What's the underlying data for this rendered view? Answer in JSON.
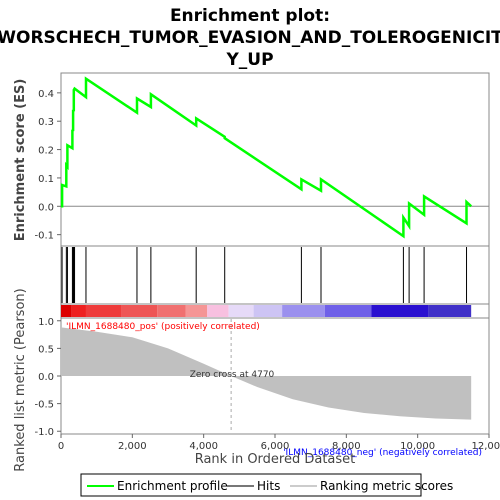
{
  "chart_data": {
    "type": "line",
    "title_lines": [
      "Enrichment plot:",
      "WORSCHECH_TUMOR_EVASION_AND_TOLEROGENICIT",
      "Y_UP"
    ],
    "ylabel_top": "Enrichment score (ES)",
    "ylabel_bottom": "Ranked list metric (Pearson)",
    "xlabel": "Rank in Ordered Dataset",
    "xlim": [
      0,
      12000
    ],
    "x_ticks": [
      0,
      2000,
      4000,
      6000,
      8000,
      10000,
      12000
    ],
    "x_tick_labels": [
      "0",
      "2,000",
      "4,000",
      "6,000",
      "8,000",
      "10,000",
      "12,000"
    ],
    "es_ylim": [
      -0.14,
      0.47
    ],
    "es_ticks": [
      -0.1,
      0.0,
      0.1,
      0.2,
      0.3,
      0.4
    ],
    "es_tick_labels": [
      "-0.1",
      "0.0",
      "0.1",
      "0.2",
      "0.3",
      "0.4"
    ],
    "metric_ylim": [
      -1.05,
      1.05
    ],
    "metric_ticks": [
      -1.0,
      -0.5,
      0.0,
      0.5,
      1.0
    ],
    "metric_tick_labels": [
      "-1.0",
      "-0.5",
      "0.0",
      "0.5",
      "1.0"
    ],
    "enrichment_profile": {
      "name": "Enrichment profile",
      "color": "#00ff00",
      "x": [
        0,
        30,
        30,
        150,
        150,
        180,
        180,
        320,
        320,
        340,
        340,
        360,
        360,
        380,
        380,
        700,
        700,
        2130,
        2130,
        2520,
        2520,
        3790,
        3790,
        4590,
        4590,
        6740,
        6740,
        7290,
        7290,
        9600,
        9600,
        9760,
        9760,
        10180,
        10180,
        11370,
        11370,
        11500
      ],
      "y": [
        0.0,
        0.0,
        0.075,
        0.07,
        0.145,
        0.14,
        0.215,
        0.205,
        0.27,
        0.265,
        0.34,
        0.335,
        0.41,
        0.415,
        0.415,
        0.385,
        0.45,
        0.33,
        0.38,
        0.35,
        0.395,
        0.285,
        0.31,
        0.245,
        0.24,
        0.06,
        0.095,
        0.055,
        0.095,
        -0.105,
        -0.04,
        -0.07,
        0.01,
        -0.03,
        0.035,
        -0.06,
        0.015,
        0.0
      ]
    },
    "hits": [
      30,
      150,
      180,
      320,
      340,
      360,
      380,
      700,
      2130,
      2520,
      3790,
      4590,
      6740,
      7290,
      9600,
      9760,
      10180,
      11370
    ],
    "ranked_metric": {
      "x": [
        0,
        1000,
        2000,
        3000,
        4000,
        4770,
        5500,
        6500,
        7500,
        8500,
        9500,
        10500,
        11500
      ],
      "y": [
        0.88,
        0.8,
        0.7,
        0.5,
        0.22,
        0.0,
        -0.2,
        -0.42,
        -0.57,
        -0.67,
        -0.73,
        -0.77,
        -0.79
      ]
    },
    "zero_cross_x": 4770,
    "annotations": {
      "pos_label": "'ILMN_1688480_pos' (positively correlated)",
      "neg_label": "'ILMN_1688480_neg' (negatively correlated)",
      "zero_cross": "Zero cross at 4770"
    },
    "ranking_colorbar": [
      {
        "to": 300,
        "color": "#dd0000"
      },
      {
        "to": 700,
        "color": "#ee2020"
      },
      {
        "to": 1700,
        "color": "#ee3b3b"
      },
      {
        "to": 2700,
        "color": "#ee5555"
      },
      {
        "to": 3500,
        "color": "#f07070"
      },
      {
        "to": 4100,
        "color": "#f59595"
      },
      {
        "to": 4700,
        "color": "#f8c0e0"
      },
      {
        "to": 5400,
        "color": "#e6daf8"
      },
      {
        "to": 6200,
        "color": "#cdc4f4"
      },
      {
        "to": 7400,
        "color": "#9b90ee"
      },
      {
        "to": 8700,
        "color": "#6f60e8"
      },
      {
        "to": 10300,
        "color": "#2a10d0"
      },
      {
        "to": 11500,
        "color": "#4030c8"
      }
    ],
    "colors": {
      "profile": "#00ff00",
      "hit": "#000000",
      "metric_fill": "#c0c0c0",
      "pos_label": "#ff0000",
      "neg_label": "#0000ff"
    },
    "legend": {
      "position": "bottom",
      "items": [
        {
          "label": "Enrichment profile",
          "kind": "line",
          "color": "#00ff00"
        },
        {
          "label": "Hits",
          "kind": "line",
          "color": "#777777"
        },
        {
          "label": "Ranking metric scores",
          "kind": "line",
          "color": "#cccccc"
        }
      ]
    }
  }
}
